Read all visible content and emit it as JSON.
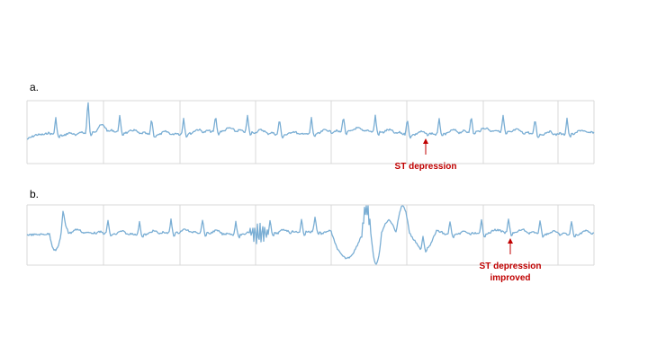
{
  "panels": [
    {
      "label": "a.",
      "annotation": [
        "ST depression"
      ]
    },
    {
      "label": "b.",
      "annotation": [
        "ST depression",
        "improved"
      ]
    }
  ]
}
